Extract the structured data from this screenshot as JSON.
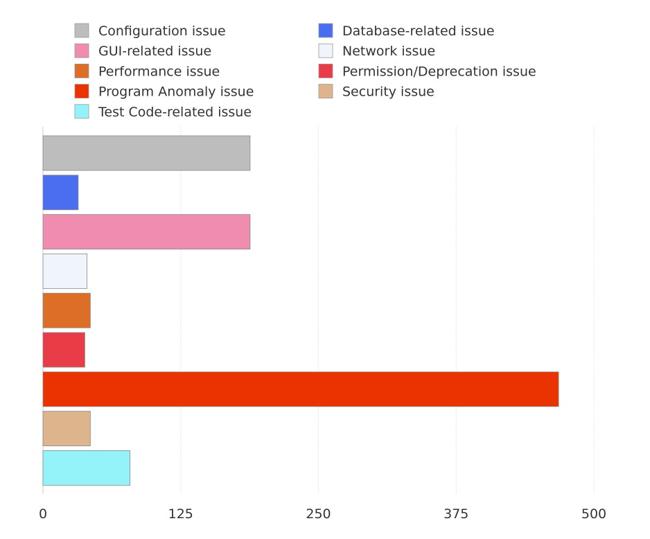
{
  "chart_data": {
    "type": "bar",
    "orientation": "horizontal",
    "title": "",
    "xlabel": "",
    "ylabel": "",
    "xlim": [
      0,
      500
    ],
    "x_ticks": [
      "0",
      "125",
      "250",
      "375",
      "500"
    ],
    "x_tick_values": [
      0,
      125,
      250,
      375,
      500
    ],
    "grid": true,
    "legend_position": "top",
    "series": [
      {
        "name": "Configuration issue",
        "value": 188,
        "color": "#bdbdbd"
      },
      {
        "name": "Database-related issue",
        "value": 32,
        "color": "#4b6ef0"
      },
      {
        "name": "GUI-related issue",
        "value": 188,
        "color": "#f08cb0"
      },
      {
        "name": "Network issue",
        "value": 40,
        "color": "#f0f5fc"
      },
      {
        "name": "Performance issue",
        "value": 43,
        "color": "#dc6e28"
      },
      {
        "name": "Permission/Deprecation issue",
        "value": 38,
        "color": "#e83c48"
      },
      {
        "name": "Program Anomaly issue",
        "value": 468,
        "color": "#ea3300"
      },
      {
        "name": "Security issue",
        "value": 43,
        "color": "#ddb48c"
      },
      {
        "name": "Test Code-related issue",
        "value": 79,
        "color": "#93f3f8"
      }
    ],
    "legend_order": [
      "Configuration issue",
      "Database-related issue",
      "GUI-related issue",
      "Network issue",
      "Performance issue",
      "Permission/Deprecation issue",
      "Program Anomaly issue",
      "Security issue",
      "Test Code-related issue"
    ]
  }
}
